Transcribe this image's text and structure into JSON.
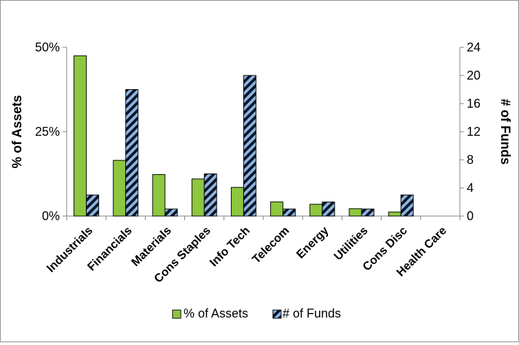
{
  "chart_data": {
    "type": "bar",
    "categories": [
      "Industrials",
      "Financials",
      "Materials",
      "Cons Staples",
      "Info Tech",
      "Telecom",
      "Energy",
      "Utilities",
      "Cons Disc",
      "Health Care"
    ],
    "series": [
      {
        "name": "% of Assets",
        "axis": "left",
        "values": [
          47.5,
          16.5,
          12.3,
          11.0,
          8.5,
          4.2,
          3.5,
          2.2,
          1.2,
          0
        ],
        "color": "#8DC63F",
        "pattern": "solid"
      },
      {
        "name": "# of Funds",
        "axis": "right",
        "values": [
          3,
          18,
          1,
          6,
          20,
          1,
          2,
          1,
          3,
          0
        ],
        "color": "#0b1626",
        "stripe_color": "#8CB4E2",
        "pattern": "diagonal-stripes"
      }
    ],
    "ylabel": "% of Assets",
    "y2label": "# of Funds",
    "ylim": [
      0,
      50
    ],
    "y2lim": [
      0,
      24
    ],
    "yticks": [
      "0%",
      "25%",
      "50%"
    ],
    "y2ticks": [
      "0",
      "4",
      "8",
      "12",
      "16",
      "20",
      "24"
    ],
    "legend_position": "bottom",
    "grid": false
  }
}
